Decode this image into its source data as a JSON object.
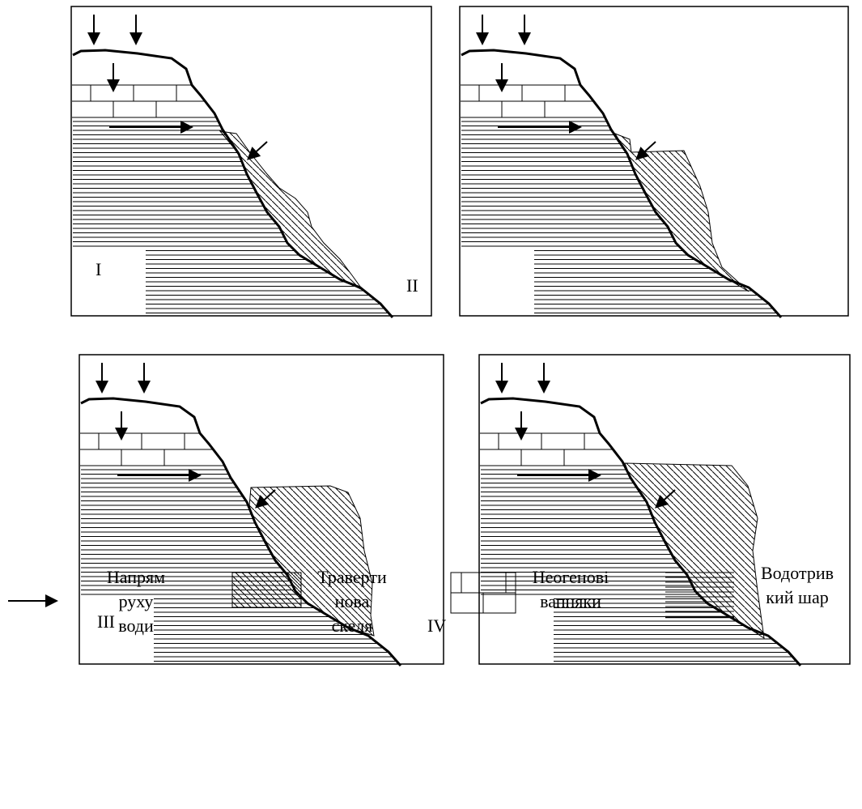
{
  "panels": [
    {
      "label": "I"
    },
    {
      "label": "II"
    },
    {
      "label": "III"
    },
    {
      "label": "IV"
    }
  ],
  "legend": [
    {
      "lines": [
        "Напрям",
        "руху",
        "води"
      ]
    },
    {
      "lines": [
        "Траверти",
        "нова",
        "скеля"
      ]
    },
    {
      "lines": [
        "Неогенові",
        "вапняки"
      ]
    },
    {
      "lines": [
        "Водотрив",
        "кий шар"
      ]
    }
  ]
}
